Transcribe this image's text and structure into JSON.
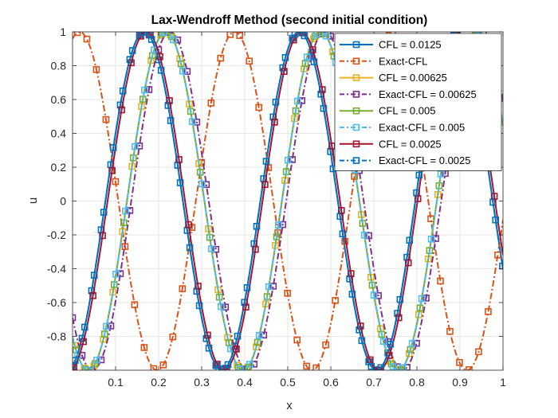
{
  "chart_data": {
    "type": "line",
    "title": "Lax-Wendroff Method (second initial condition)",
    "xlabel": "x",
    "ylabel": "u",
    "xlim": [
      0,
      1
    ],
    "ylim": [
      -1,
      1
    ],
    "xticks": [
      0.1,
      0.2,
      0.3,
      0.4,
      0.5,
      0.6,
      0.7,
      0.8,
      0.9,
      1
    ],
    "xtick_labels": [
      "0.1",
      "0.2",
      "0.3",
      "0.4",
      "0.5",
      "0.6",
      "0.7",
      "0.8",
      "0.9",
      "1"
    ],
    "yticks": [
      -0.8,
      -0.6,
      -0.4,
      -0.2,
      0,
      0.2,
      0.4,
      0.6,
      0.8,
      1
    ],
    "ytick_labels": [
      "-0.8",
      "-0.6",
      "-0.4",
      "-0.2",
      "0",
      "0.2",
      "0.4",
      "0.6",
      "0.8",
      "1"
    ],
    "grid": true,
    "legend_position": "top-right",
    "curve_model": "u(x) = sin(2*pi*(x - phase)/wavelength)",
    "series": [
      {
        "name": "CFL = 0.0125",
        "color": "#0072BD",
        "dash": "solid",
        "marker_spacing": 0.0222,
        "marker_offset": 0.0,
        "wavelength": 0.36,
        "phase": 0.0764
      },
      {
        "name": "Exact-CFL",
        "color": "#D95319",
        "dash": "dashdot",
        "marker_spacing": 0.0222,
        "marker_offset": 0.011,
        "wavelength": 0.36,
        "phase": 0.2864
      },
      {
        "name": "CFL = 0.00625",
        "color": "#EDB120",
        "dash": "solid",
        "marker_spacing": 0.0222,
        "marker_offset": 0.005,
        "wavelength": 0.36,
        "phase": 0.1264
      },
      {
        "name": "Exact-CFL = 0.00625",
        "color": "#7E2F8E",
        "dash": "dashdot",
        "marker_spacing": 0.0222,
        "marker_offset": 0.0,
        "wavelength": 0.36,
        "phase": 0.1364
      },
      {
        "name": "CFL = 0.005",
        "color": "#77AC30",
        "dash": "solid",
        "marker_spacing": 0.0222,
        "marker_offset": 0.008,
        "wavelength": 0.36,
        "phase": 0.1264
      },
      {
        "name": "Exact-CFL = 0.005",
        "color": "#4DBEEE",
        "dash": "dashdot",
        "marker_spacing": 0.0222,
        "marker_offset": 0.012,
        "wavelength": 0.36,
        "phase": 0.1264
      },
      {
        "name": "CFL = 0.0025",
        "color": "#A2142F",
        "dash": "solid",
        "marker_spacing": 0.0222,
        "marker_offset": 0.003,
        "wavelength": 0.36,
        "phase": 0.0814
      },
      {
        "name": "Exact-CFL = 0.0025",
        "color": "#0072BD",
        "dash": "dashdot",
        "marker_spacing": 0.0222,
        "marker_offset": 0.006,
        "wavelength": 0.36,
        "phase": 0.0764
      }
    ]
  }
}
